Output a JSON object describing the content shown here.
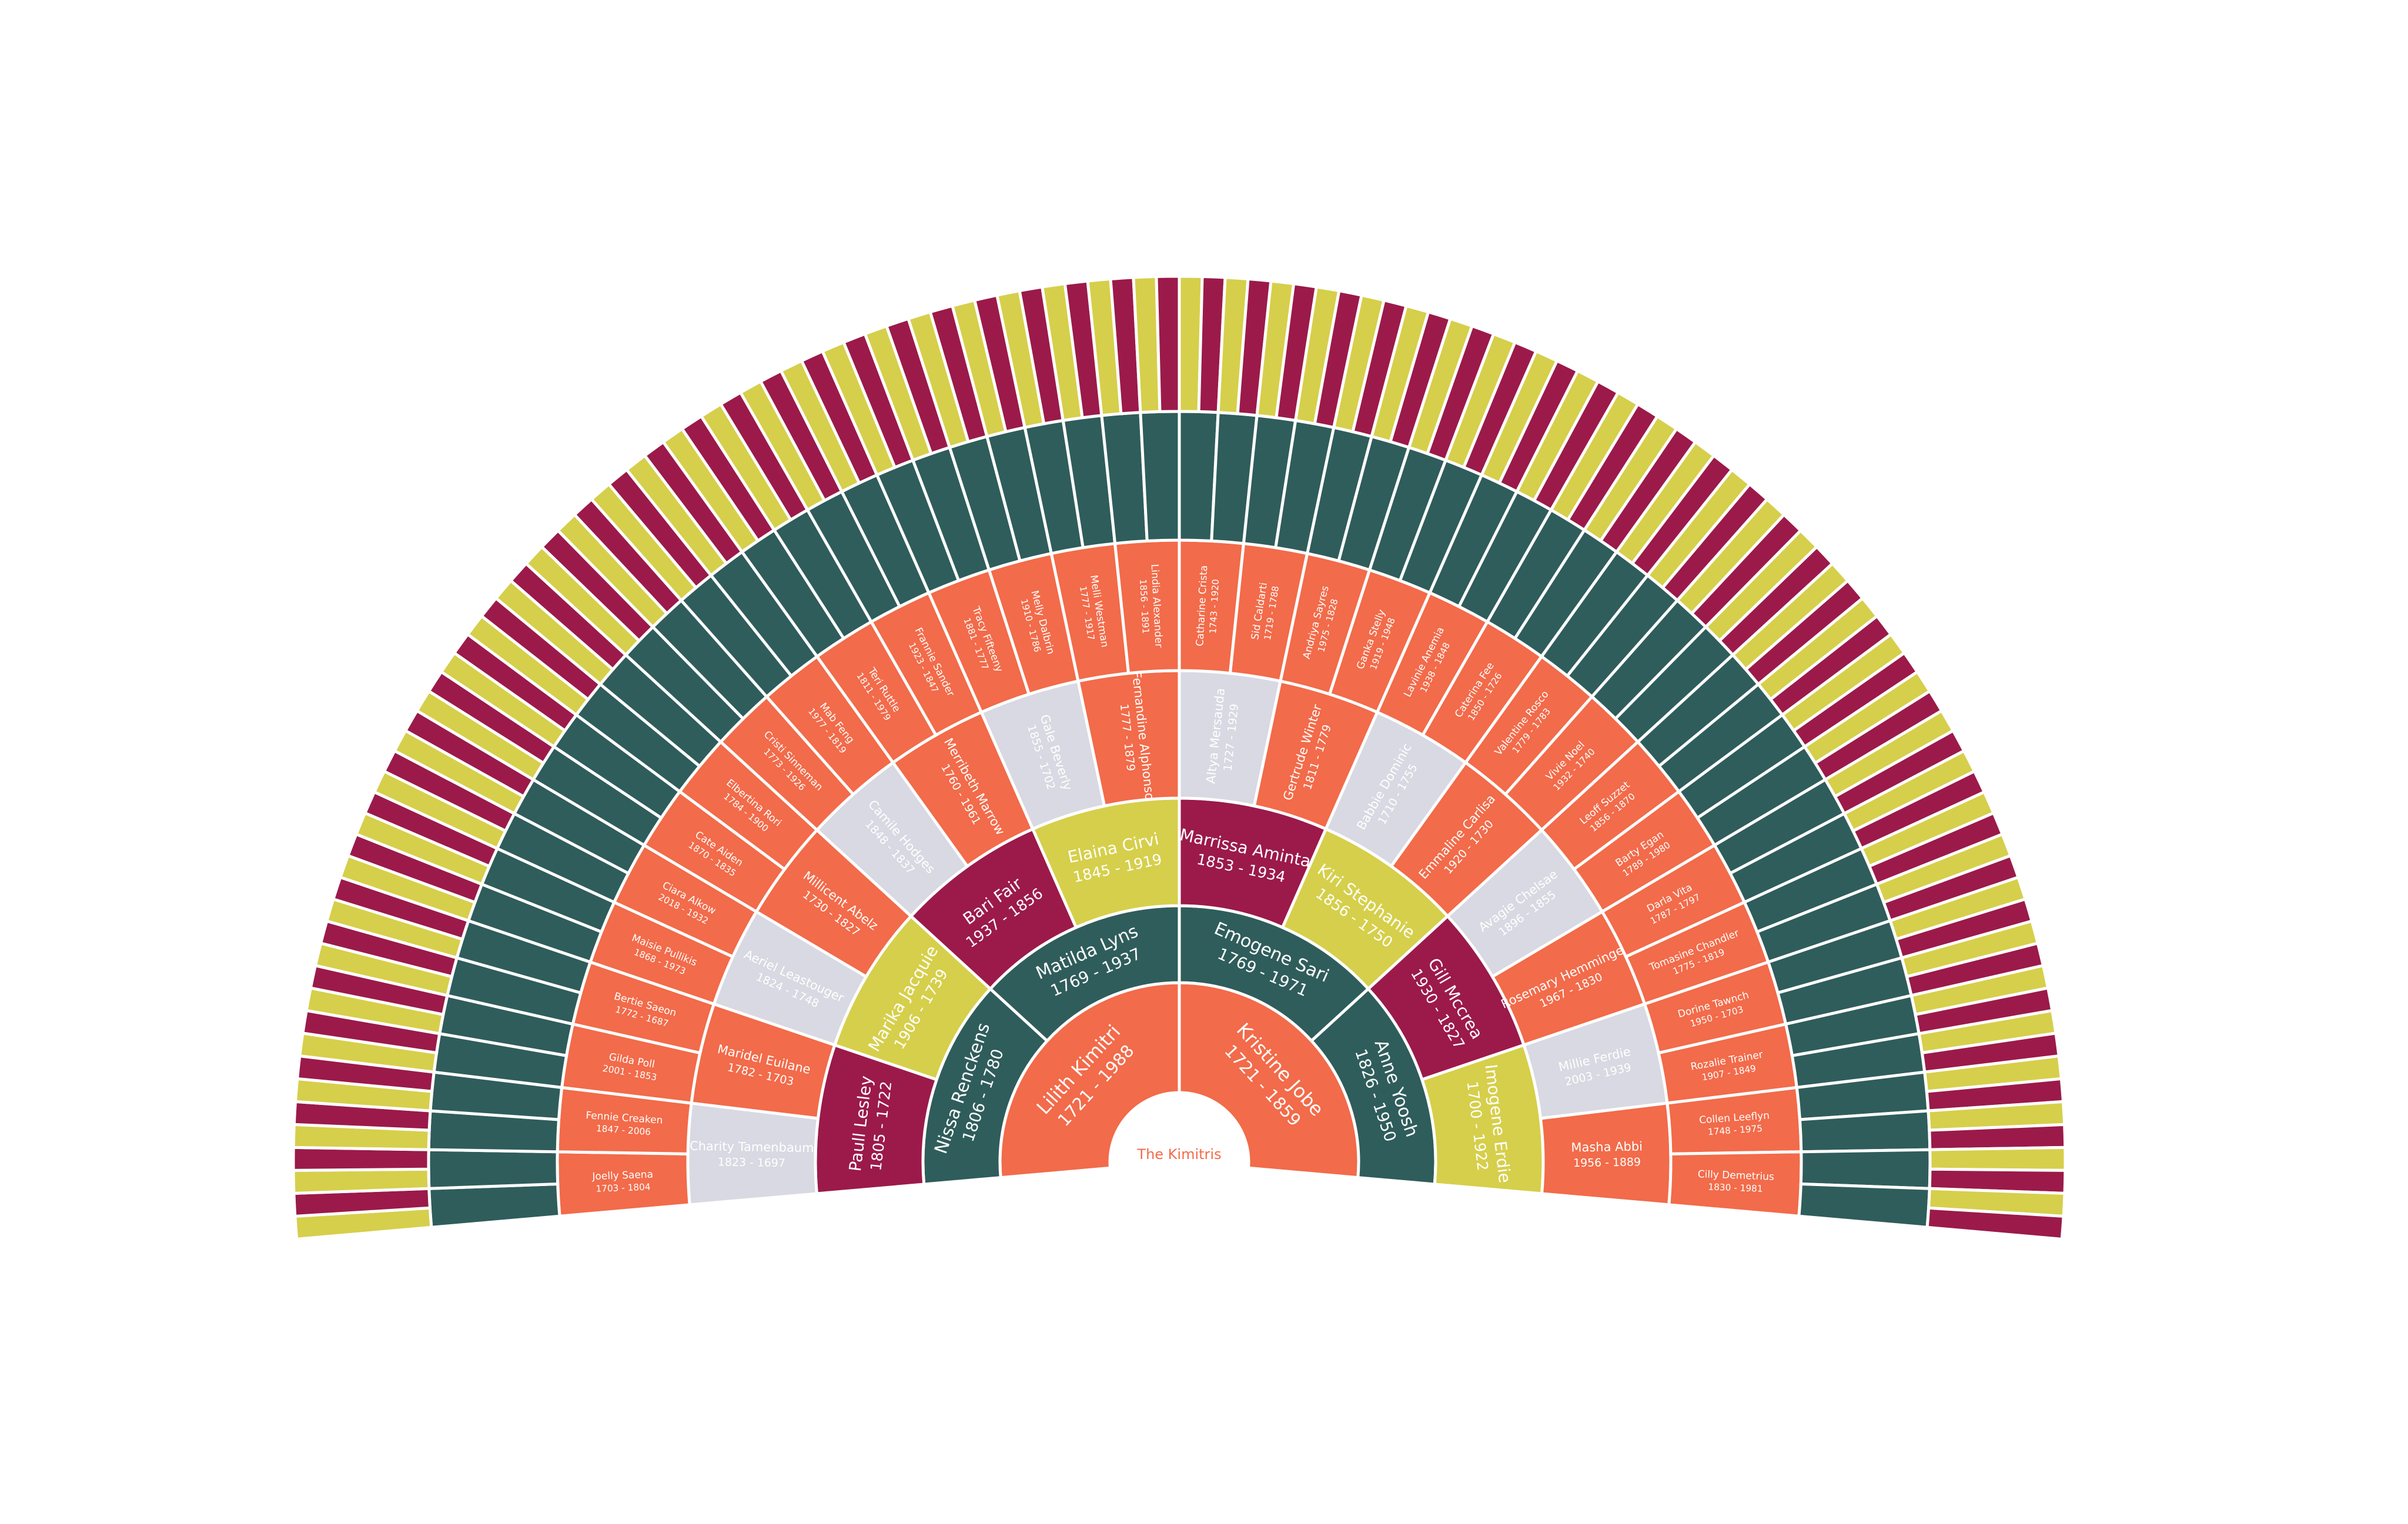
{
  "title": "The Kimitris",
  "rings": [
    [
      {
        "name": "Lilith Kimitri",
        "dates": "1721 - 1988"
      },
      {
        "name": "Kristine Jobe",
        "dates": "1721 - 1859"
      }
    ],
    [
      {
        "name": "Nissa Renckens",
        "dates": "1806 - 1780"
      },
      {
        "name": "Matilda Lyns",
        "dates": "1769 - 1937"
      },
      {
        "name": "Emogene Sari",
        "dates": "1769 - 1971"
      },
      {
        "name": "Anne Yoosh",
        "dates": "1826 - 1950"
      }
    ],
    [
      {
        "name": "Paull Lesley",
        "dates": "1805 - 1722"
      },
      {
        "name": "Marika Jacquie",
        "dates": "1906 - 1739"
      },
      {
        "name": "Bari Fair",
        "dates": "1937 - 1856"
      },
      {
        "name": "Elaina Cirvi",
        "dates": "1845 - 1919"
      },
      {
        "name": "Marrissa Aminta",
        "dates": "1853 - 1934"
      },
      {
        "name": "Kiri Stephanie",
        "dates": "1856 - 1750"
      },
      {
        "name": "Gill Mccrea",
        "dates": "1930 - 1827"
      },
      {
        "name": "Imogene Erdie",
        "dates": "1700 - 1922"
      }
    ],
    [
      {
        "name": "Charity Tamenbaum",
        "dates": "1823 - 1697"
      },
      {
        "name": "Maridel Euilane",
        "dates": "1782 - 1703"
      },
      {
        "name": "Aeriel Leastouger",
        "dates": "1824 - 1748"
      },
      {
        "name": "Millicent Abelz",
        "dates": "1730 - 1827"
      },
      {
        "name": "Camile Hodges",
        "dates": "1848 - 1837"
      },
      {
        "name": "Merribeth Marrow",
        "dates": "1760 - 1961"
      },
      {
        "name": "Gale Beverly",
        "dates": "1855 - 1702"
      },
      {
        "name": "Fernandine Alphonso",
        "dates": "1777 - 1879"
      },
      {
        "name": "Altya Mersauda",
        "dates": "1727 - 1929"
      },
      {
        "name": "Gertrude Winter",
        "dates": "1811 - 1779"
      },
      {
        "name": "Babbie Dominic",
        "dates": "1710 - 1755"
      },
      {
        "name": "Emmaline Carlisa",
        "dates": "1920 - 1730"
      },
      {
        "name": "Avagie Chelsae",
        "dates": "1896 - 1855"
      },
      {
        "name": "Rosemary Hemminger",
        "dates": "1967 - 1830"
      },
      {
        "name": "Millie Ferdie",
        "dates": "2003 - 1939"
      },
      {
        "name": "Masha Abbi",
        "dates": "1956 - 1889"
      }
    ],
    [
      {
        "name": "Joelly Saena",
        "dates": "1703 - 1804"
      },
      {
        "name": "Fennie Creaken",
        "dates": "1847 - 2006"
      },
      {
        "name": "Gilda Poll",
        "dates": "2001 - 1853"
      },
      {
        "name": "Bertie Saeon",
        "dates": "1772 - 1687"
      },
      {
        "name": "Maisie Pullikis",
        "dates": "1868 - 1973"
      },
      {
        "name": "Ciara Alkow",
        "dates": "2018 - 1932"
      },
      {
        "name": "Cate Aiden",
        "dates": "1870 - 1835"
      },
      {
        "name": "Elbertina Rori",
        "dates": "1784 - 1900"
      },
      {
        "name": "Cristi Sinneman",
        "dates": "1773 - 1926"
      },
      {
        "name": "Mab Feng",
        "dates": "1977 - 1819"
      },
      {
        "name": "Teri Ruttle",
        "dates": "1811 - 1979"
      },
      {
        "name": "Frannie Sander",
        "dates": "1923 - 1847"
      },
      {
        "name": "Tracy Fifteeny",
        "dates": "1881 - 1777"
      },
      {
        "name": "Melly Dalbrin",
        "dates": "1910 - 1786"
      },
      {
        "name": "Melli Westman",
        "dates": "1777 - 1917"
      },
      {
        "name": "Lindia Alexander",
        "dates": "1856 - 1891"
      },
      {
        "name": "Catharine Crista",
        "dates": "1743 - 1920"
      },
      {
        "name": "Sid Caldarti",
        "dates": "1719 - 1788"
      },
      {
        "name": "Andriya Sayres",
        "dates": "1975 - 1828"
      },
      {
        "name": "Ganka Stelly",
        "dates": "1919 - 1948"
      },
      {
        "name": "Lavinie Anemia",
        "dates": "1938 - 1848"
      },
      {
        "name": "Caterina Fee",
        "dates": "1850 - 1726"
      },
      {
        "name": "Valentine Rosco",
        "dates": "1779 - 1783"
      },
      {
        "name": "Vivie Noel",
        "dates": "1932 - 1740"
      },
      {
        "name": "Leoff Suzzet",
        "dates": "1856 - 1870"
      },
      {
        "name": "Barty Egan",
        "dates": "1789 - 1980"
      },
      {
        "name": "Darla Vita",
        "dates": "1787 - 1797"
      },
      {
        "name": "Tomasine Chandler",
        "dates": "1775 - 1819"
      },
      {
        "name": "Dorine Tawnch",
        "dates": "1950 - 1703"
      },
      {
        "name": "Rozalie Trainer",
        "dates": "1907 - 1849"
      },
      {
        "name": "Collen Leeflyn",
        "dates": "1748 - 1975"
      },
      {
        "name": "Cilly Demetrius",
        "dates": "1830 - 1981"
      }
    ]
  ]
}
